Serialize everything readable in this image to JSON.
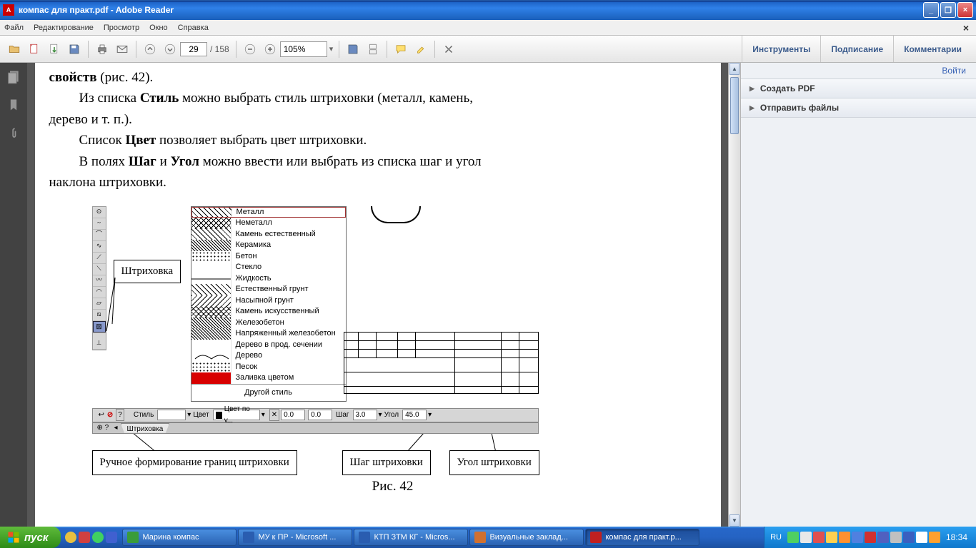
{
  "window": {
    "title": "компас для практ.pdf - Adobe Reader",
    "min_tip": "_",
    "max_tip": "❐",
    "close_tip": "×"
  },
  "menu": {
    "items": [
      "Файл",
      "Редактирование",
      "Просмотр",
      "Окно",
      "Справка"
    ]
  },
  "toolbar": {
    "page_current": "29",
    "page_total": "/  158",
    "zoom": "105%",
    "right_tabs": [
      "Инструменты",
      "Подписание",
      "Комментарии"
    ]
  },
  "panel": {
    "signin": "Войти",
    "rows": [
      "Создать PDF",
      "Отправить файлы"
    ]
  },
  "document": {
    "line1a": "свойств",
    "line1b": " (рис. 42).",
    "line2a": "Из списка ",
    "line2b": "Стиль",
    "line2c": " можно выбрать стиль штриховки (металл, камень,",
    "line3": "дерево и т. п.).",
    "line4a": "Список ",
    "line4b": "Цвет",
    "line4c": " позволяет выбрать цвет штриховки.",
    "line5a": "В полях ",
    "line5b": "Шаг",
    "line5c": " и ",
    "line5d": "Угол",
    "line5e": " можно ввести или выбрать из списка шаг и угол",
    "line6": "наклона штриховки.",
    "callout_hatch": "Штриховка",
    "list": {
      "items": [
        "Металл",
        "Неметалл",
        "Камень естественный",
        "Керамика",
        "Бетон",
        "Стекло",
        "Жидкость",
        "Естественный грунт",
        "Насыпной грунт",
        "Камень искусственный",
        "Железобетон",
        "Напряженный железобетон",
        "Дерево в прод. сечении",
        "Дерево",
        "Песок",
        "Заливка цветом"
      ],
      "other": "Другой стиль"
    },
    "propbar": {
      "style_lbl": "Стиль",
      "color_lbl": "Цвет",
      "color_val": "Цвет по у...",
      "tx": "0.0",
      "ty": "0.0",
      "step_lbl": "Шаг",
      "step_val": "3.0",
      "angle_lbl": "Угол",
      "angle_val": "45.0",
      "tab": "Штриховка"
    },
    "bottom_boxes": [
      "Ручное формирование границ штриховки",
      "Шаг штриховки",
      "Угол штриховки"
    ],
    "caption": "Рис. 42"
  },
  "taskbar": {
    "start": "пуск",
    "tasks": [
      {
        "label": "Марина компас",
        "icon_bg": "#3a9c3a",
        "active": false
      },
      {
        "label": "МУ к ПР - Microsoft ...",
        "icon_bg": "#2a5db0",
        "active": false
      },
      {
        "label": "КТП ЗТМ КГ - Micros...",
        "icon_bg": "#2a5db0",
        "active": false
      },
      {
        "label": "Визуальные заклад...",
        "icon_bg": "#d07030",
        "active": false
      },
      {
        "label": "компас для практ.p...",
        "icon_bg": "#c02020",
        "active": true
      }
    ],
    "lang": "RU",
    "clock": "18:34",
    "tray_colors": [
      "#4fd060",
      "#e8e8e8",
      "#e05050",
      "#ffd050",
      "#ff9030",
      "#5080e0",
      "#d03030",
      "#5060c0",
      "#c0c0c0",
      "#3a5fc0",
      "#ffffff",
      "#ffa030"
    ]
  },
  "colors": {
    "titlebar_start": "#3c8cde",
    "titlebar_end": "#1a5fba",
    "taskbar_start": "#3e94ea",
    "taskbar_end": "#1b4fa0",
    "start_green_a": "#5fbb3b",
    "start_green_b": "#2d8b17",
    "panel_bg": "#eef1f5",
    "doc_bg": "#565656",
    "list_sel_border": "#a03030",
    "solid_fill": "#d80000"
  }
}
